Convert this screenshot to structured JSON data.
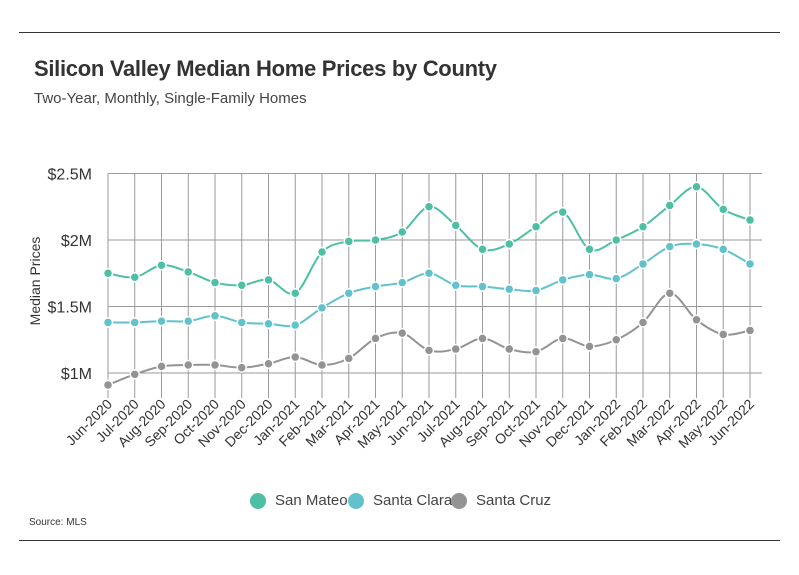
{
  "header": {
    "title": "Silicon Valley Median Home Prices by County",
    "subtitle": "Two-Year, Monthly, Single-Family Homes"
  },
  "footer": {
    "source": "Source:  MLS"
  },
  "colors": {
    "san_mateo": "#4dbfa5",
    "santa_clara": "#62c2cc",
    "santa_cruz": "#939393",
    "grid": "#9a9a9a",
    "text": "#333333"
  },
  "chart_data": {
    "type": "line",
    "title": "Silicon Valley Median Home Prices by County",
    "subtitle": "Two-Year, Monthly, Single-Family Homes",
    "xlabel": "",
    "ylabel": "Median Prices",
    "ylim": [
      0.9,
      2.5
    ],
    "y_ticks": [
      1,
      1.5,
      2,
      2.5
    ],
    "y_tick_labels": [
      "$1M",
      "$1.5M",
      "$2M",
      "$2.5M"
    ],
    "grid": "vertical and horizontal",
    "legend_position": "bottom",
    "categories": [
      "Jun-2020",
      "Jul-2020",
      "Aug-2020",
      "Sep-2020",
      "Oct-2020",
      "Nov-2020",
      "Dec-2020",
      "Jan-2021",
      "Feb-2021",
      "Mar-2021",
      "Apr-2021",
      "May-2021",
      "Jun-2021",
      "Jul-2021",
      "Aug-2021",
      "Sep-2021",
      "Oct-2021",
      "Nov-2021",
      "Dec-2021",
      "Jan-2022",
      "Feb-2022",
      "Mar-2022",
      "Apr-2022",
      "May-2022",
      "Jun-2022"
    ],
    "series": [
      {
        "name": "San Mateo",
        "color": "#4dbfa5",
        "values": [
          1.75,
          1.72,
          1.81,
          1.76,
          1.68,
          1.66,
          1.7,
          1.6,
          1.91,
          1.99,
          2.0,
          2.06,
          2.25,
          2.11,
          1.93,
          1.97,
          2.1,
          2.21,
          1.93,
          2.0,
          2.1,
          2.26,
          2.4,
          2.23,
          2.15
        ]
      },
      {
        "name": "Santa Clara",
        "color": "#62c2cc",
        "values": [
          1.38,
          1.38,
          1.39,
          1.39,
          1.43,
          1.38,
          1.37,
          1.36,
          1.49,
          1.6,
          1.65,
          1.68,
          1.75,
          1.66,
          1.65,
          1.63,
          1.62,
          1.7,
          1.74,
          1.71,
          1.82,
          1.95,
          1.97,
          1.93,
          1.82
        ]
      },
      {
        "name": "Santa Cruz",
        "color": "#939393",
        "values": [
          0.91,
          0.99,
          1.05,
          1.06,
          1.06,
          1.04,
          1.07,
          1.12,
          1.06,
          1.11,
          1.26,
          1.3,
          1.17,
          1.18,
          1.26,
          1.18,
          1.16,
          1.26,
          1.2,
          1.25,
          1.38,
          1.6,
          1.4,
          1.29,
          1.32
        ]
      }
    ]
  }
}
